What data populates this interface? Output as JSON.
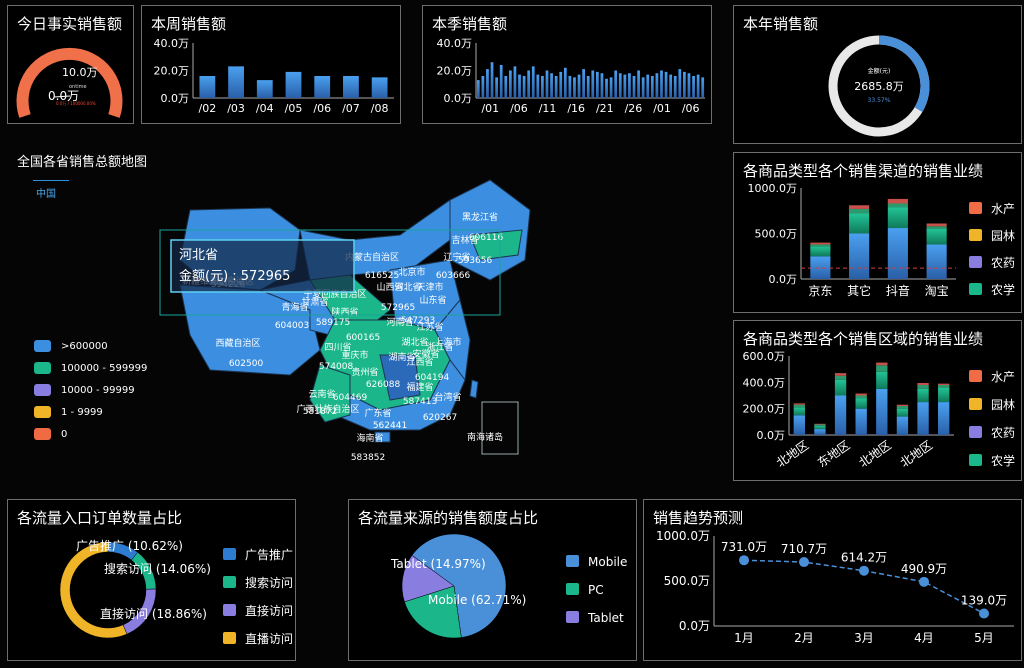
{
  "today": {
    "title": "今日事实销售额",
    "max_label": "10.0万",
    "min_label": "0.0万",
    "value_label": "ontime",
    "sub_label": "0.0万 / 100000.00%",
    "fill_fraction": 0.999,
    "color": "#f0704a"
  },
  "week": {
    "title": "本周销售额",
    "chart_data": {
      "type": "bar",
      "title": "本周销售额",
      "categories": [
        "/02",
        "/03",
        "/04",
        "/05",
        "/06",
        "/07",
        "/08"
      ],
      "values": [
        16,
        23,
        13,
        19,
        16,
        16,
        15
      ],
      "y_ticks": [
        "40.0万",
        "20.0万",
        "0.0万"
      ],
      "ylim": [
        0,
        40
      ],
      "unit": "万"
    }
  },
  "season": {
    "title": "本季销售额",
    "chart_data": {
      "type": "bar",
      "title": "本季销售额",
      "tick_labels": [
        "/01",
        "/06",
        "/11",
        "/16",
        "/21",
        "/26",
        "/01",
        "/06"
      ],
      "values": [
        13,
        16,
        21,
        26,
        15,
        24,
        16,
        20,
        23,
        17,
        16,
        20,
        23,
        17,
        16,
        20,
        18,
        16,
        19,
        22,
        16,
        15,
        17,
        21,
        16,
        20,
        19,
        18,
        14,
        15,
        20,
        18,
        17,
        18,
        16,
        20,
        15,
        17,
        16,
        18,
        20,
        19,
        17,
        16,
        21,
        19,
        18,
        16,
        17,
        15
      ],
      "y_ticks": [
        "40.0万",
        "20.0万",
        "0.0万"
      ],
      "ylim": [
        0,
        40
      ],
      "unit": "万"
    }
  },
  "year": {
    "title": "本年销售额",
    "inner_label": "金额(元)",
    "value": "2685.8万",
    "percent": "33.57%",
    "fraction": 0.3357,
    "color": "#4a90d9"
  },
  "map": {
    "title": "全国各省销售总额地图",
    "tab": "中国",
    "tooltip_title": "河北省",
    "tooltip_value": "金额(元) : 572965",
    "legend": [
      {
        "label": ">600000",
        "color": "#3c8fe0"
      },
      {
        "label": "100000 - 599999",
        "color": "#1bb78a"
      },
      {
        "label": "10000 - 99999",
        "color": "#8a7de0"
      },
      {
        "label": "1 - 9999",
        "color": "#f0b428"
      },
      {
        "label": "0",
        "color": "#f06a44"
      }
    ],
    "labels": [
      {
        "text": "黑龙江省"
      },
      {
        "text": "606116"
      },
      {
        "text": "吉林省"
      },
      {
        "text": "辽宁省"
      },
      {
        "text": "593656"
      },
      {
        "text": "603666"
      },
      {
        "text": "内蒙古自治区"
      },
      {
        "text": "616525"
      },
      {
        "text": "新疆维吾尔自治区"
      },
      {
        "text": "594226"
      },
      {
        "text": "青海省"
      },
      {
        "text": "甘肃省"
      },
      {
        "text": "宁夏回族自治区"
      },
      {
        "text": "604003"
      },
      {
        "text": "589175"
      },
      {
        "text": "西藏自治区"
      },
      {
        "text": "602500"
      },
      {
        "text": "四川省"
      },
      {
        "text": "574008"
      },
      {
        "text": "重庆市"
      },
      {
        "text": "云南省"
      },
      {
        "text": "604469"
      },
      {
        "text": "581872"
      },
      {
        "text": "贵州省"
      },
      {
        "text": "广西壮族自治区"
      },
      {
        "text": "广东省"
      },
      {
        "text": "562441"
      },
      {
        "text": "海南省"
      },
      {
        "text": "583852"
      },
      {
        "text": "陕西省"
      },
      {
        "text": "600165"
      },
      {
        "text": "河南省"
      },
      {
        "text": "湖北省"
      },
      {
        "text": "湖南省"
      },
      {
        "text": "626088"
      },
      {
        "text": "江西省"
      },
      {
        "text": "604194"
      },
      {
        "text": "福建省"
      },
      {
        "text": "587413"
      },
      {
        "text": "台湾省"
      },
      {
        "text": "620267"
      },
      {
        "text": "浙江省"
      },
      {
        "text": "上海市"
      },
      {
        "text": "安徽省"
      },
      {
        "text": "江苏省"
      },
      {
        "text": "547293"
      },
      {
        "text": "山东省"
      },
      {
        "text": "山西省"
      },
      {
        "text": "572965"
      },
      {
        "text": "北京市"
      },
      {
        "text": "天津市"
      },
      {
        "text": "河北省"
      },
      {
        "text": "南海诸岛"
      }
    ]
  },
  "channel": {
    "title": "各商品类型各个销售渠道的销售业绩",
    "legend": [
      {
        "label": "水产",
        "color": "#f26b47"
      },
      {
        "label": "园林",
        "color": "#f0b428"
      },
      {
        "label": "农药",
        "color": "#8a7de0"
      },
      {
        "label": "农学",
        "color": "#1bb78a"
      }
    ],
    "chart_data": {
      "type": "bar",
      "stacked": true,
      "title": "各商品类型各个销售渠道的销售业绩",
      "categories": [
        "京东",
        "其它",
        "抖音",
        "淘宝"
      ],
      "series": [
        {
          "name": "农学",
          "values": [
            250,
            500,
            560,
            380
          ]
        },
        {
          "name": "农药",
          "values": [
            110,
            220,
            230,
            170
          ]
        },
        {
          "name": "园林",
          "values": [
            20,
            50,
            40,
            30
          ]
        },
        {
          "name": "水产",
          "values": [
            20,
            40,
            50,
            30
          ]
        }
      ],
      "y_ticks": [
        "1000.0万",
        "500.0万",
        "0.0万"
      ],
      "ylim": [
        0,
        1000
      ],
      "reference_line": 120
    }
  },
  "region": {
    "title": "各商品类型各个销售区域的销售业绩",
    "legend": [
      {
        "label": "水产",
        "color": "#f26b47"
      },
      {
        "label": "园林",
        "color": "#f0b428"
      },
      {
        "label": "农药",
        "color": "#8a7de0"
      },
      {
        "label": "农学",
        "color": "#1bb78a"
      }
    ],
    "chart_data": {
      "type": "bar",
      "stacked": true,
      "title": "各商品类型各个销售区域的销售业绩",
      "x_tick_labels": [
        "北地区",
        "东地区",
        "北地区",
        "北地区"
      ],
      "series": [
        {
          "name": "农学",
          "values": [
            150,
            45,
            300,
            200,
            350,
            140,
            250,
            250
          ]
        },
        {
          "name": "农药",
          "values": [
            60,
            25,
            120,
            80,
            130,
            60,
            100,
            110
          ]
        },
        {
          "name": "园林",
          "values": [
            20,
            10,
            30,
            20,
            50,
            20,
            30,
            20
          ]
        },
        {
          "name": "水产",
          "values": [
            10,
            5,
            20,
            15,
            20,
            10,
            15,
            10
          ]
        }
      ],
      "y_ticks": [
        "600.0万",
        "400.0万",
        "200.0万",
        "0.0万"
      ],
      "ylim": [
        0,
        600
      ]
    }
  },
  "traffic": {
    "title": "各流量入口订单数量占比",
    "chart_data": {
      "type": "pie",
      "title": "各流量入口订单数量占比",
      "slices": [
        {
          "name": "广告推广",
          "percent": 10.62,
          "color": "#2e7ccf"
        },
        {
          "name": "搜索访问",
          "percent": 14.06,
          "color": "#1bb78a"
        },
        {
          "name": "直接访问",
          "percent": 18.86,
          "color": "#8a7de0"
        },
        {
          "name": "直播访问",
          "percent": 56.46,
          "color": "#f0b428"
        }
      ]
    },
    "labels": [
      "广告推广 (10.62%)",
      "搜索访问 (14.06%)",
      "直接访问 (18.86%)"
    ],
    "legend": [
      "广告推广",
      "搜索访问",
      "直接访问",
      "直播访问"
    ]
  },
  "source": {
    "title": "各流量来源的销售额度占比",
    "chart_data": {
      "type": "pie",
      "title": "各流量来源的销售额度占比",
      "slices": [
        {
          "name": "Mobile",
          "percent": 62.71,
          "color": "#4a90d9"
        },
        {
          "name": "PC",
          "percent": 22.32,
          "color": "#1bb78a"
        },
        {
          "name": "Tablet",
          "percent": 14.97,
          "color": "#8a7de0"
        }
      ]
    },
    "labels": [
      "Tablet (14.97%)",
      "Mobile (62.71%)"
    ],
    "legend": [
      "Mobile",
      "PC",
      "Tablet"
    ]
  },
  "trend": {
    "title": "销售趋势预测",
    "chart_data": {
      "type": "line",
      "title": "销售趋势预测",
      "categories": [
        "1月",
        "2月",
        "3月",
        "4月",
        "5月"
      ],
      "values": [
        731.0,
        710.7,
        614.2,
        490.9,
        139.0
      ],
      "point_labels": [
        "731.0万",
        "710.7万",
        "614.2万",
        "490.9万",
        "139.0万"
      ],
      "y_ticks": [
        "1000.0万",
        "500.0万",
        "0.0万"
      ],
      "ylim": [
        0,
        1000
      ]
    }
  }
}
